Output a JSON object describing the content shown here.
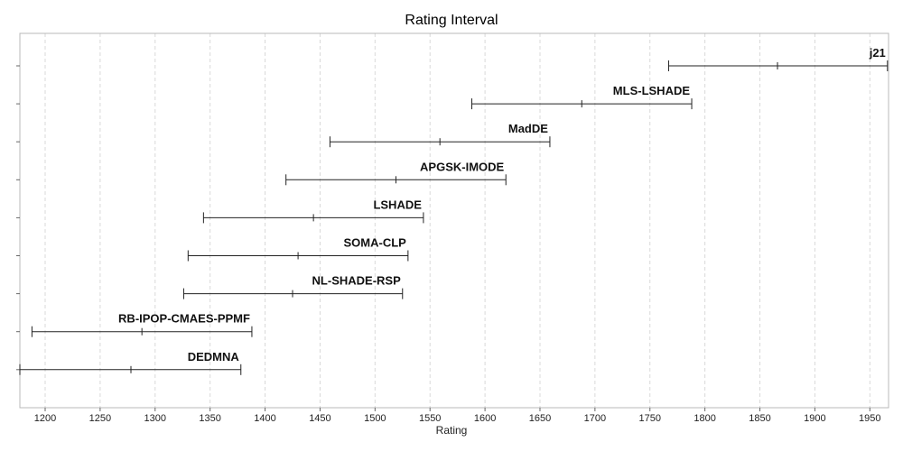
{
  "chart_data": {
    "type": "interval",
    "title": "Rating Interval",
    "xlabel": "Rating",
    "ylabel": "",
    "xlim": [
      1177,
      1967
    ],
    "xticks": [
      1200,
      1250,
      1300,
      1350,
      1400,
      1450,
      1500,
      1550,
      1600,
      1650,
      1700,
      1750,
      1800,
      1850,
      1900,
      1950
    ],
    "grid": true,
    "items": [
      {
        "name": "j21",
        "low": 1767,
        "mid": 1866,
        "high": 1966
      },
      {
        "name": "MLS-LSHADE",
        "low": 1588,
        "mid": 1688,
        "high": 1788
      },
      {
        "name": "MadDE",
        "low": 1459,
        "mid": 1559,
        "high": 1659
      },
      {
        "name": "APGSK-IMODE",
        "low": 1419,
        "mid": 1519,
        "high": 1619
      },
      {
        "name": "LSHADE",
        "low": 1344,
        "mid": 1444,
        "high": 1544
      },
      {
        "name": "SOMA-CLP",
        "low": 1330,
        "mid": 1430,
        "high": 1530
      },
      {
        "name": "NL-SHADE-RSP",
        "low": 1326,
        "mid": 1425,
        "high": 1525
      },
      {
        "name": "RB-IPOP-CMAES-PPMF",
        "low": 1188,
        "mid": 1288,
        "high": 1388
      },
      {
        "name": "DEDMNA",
        "low": 1177,
        "mid": 1278,
        "high": 1378
      }
    ]
  }
}
